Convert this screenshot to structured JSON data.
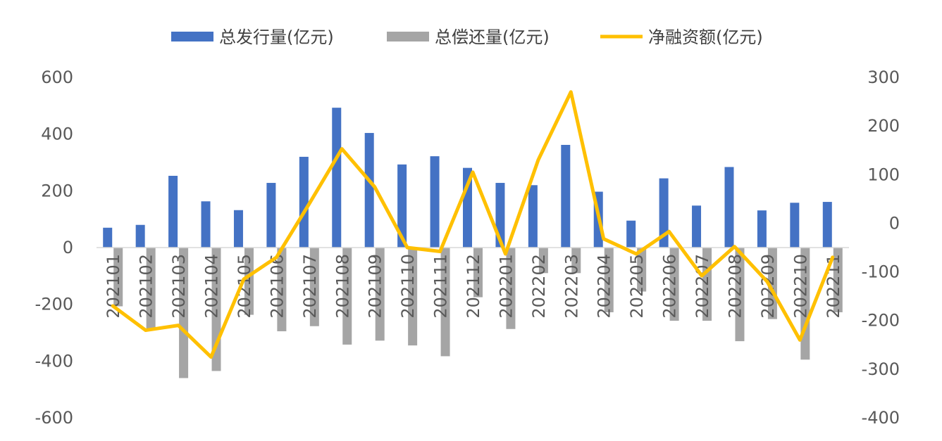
{
  "chart_data": {
    "type": "bar",
    "categories": [
      "202101",
      "202102",
      "202103",
      "202104",
      "202105",
      "202106",
      "202107",
      "202108",
      "202109",
      "202110",
      "202111",
      "202112",
      "202201",
      "202202",
      "202203",
      "202204",
      "202205",
      "202206",
      "202207",
      "202208",
      "202209",
      "202210",
      "202211"
    ],
    "series": [
      {
        "name": "总发行量(亿元)",
        "type": "bar",
        "axis": "left",
        "color": "#4472C4",
        "values": [
          70,
          80,
          253,
          163,
          132,
          228,
          320,
          493,
          404,
          293,
          322,
          281,
          228,
          220,
          362,
          197,
          95,
          244,
          148,
          284,
          131,
          158,
          161
        ]
      },
      {
        "name": "总偿还量(亿元)",
        "type": "bar",
        "axis": "left",
        "color": "#A5A5A5",
        "values": [
          -207,
          -290,
          -460,
          -435,
          -237,
          -295,
          -277,
          -342,
          -328,
          -345,
          -383,
          -175,
          -287,
          -90,
          -90,
          -228,
          -155,
          -258,
          -258,
          -330,
          -252,
          -395,
          -228
        ]
      },
      {
        "name": "净融资额(亿元)",
        "type": "line",
        "axis": "right",
        "color": "#FFC000",
        "values": [
          -170,
          -220,
          -210,
          -275,
          -115,
          -70,
          40,
          153,
          75,
          -50,
          -58,
          105,
          -63,
          130,
          270,
          -32,
          -63,
          -17,
          -108,
          -48,
          -120,
          -240,
          -70
        ]
      }
    ],
    "left_axis": {
      "min": -600,
      "max": 600,
      "ticks": [
        600,
        400,
        200,
        0,
        -200,
        -400,
        -600
      ]
    },
    "right_axis": {
      "min": -400,
      "max": 300,
      "ticks": [
        300,
        200,
        100,
        0,
        -100,
        -200,
        -300,
        -400
      ]
    },
    "legend_position": "top",
    "grid": false
  }
}
